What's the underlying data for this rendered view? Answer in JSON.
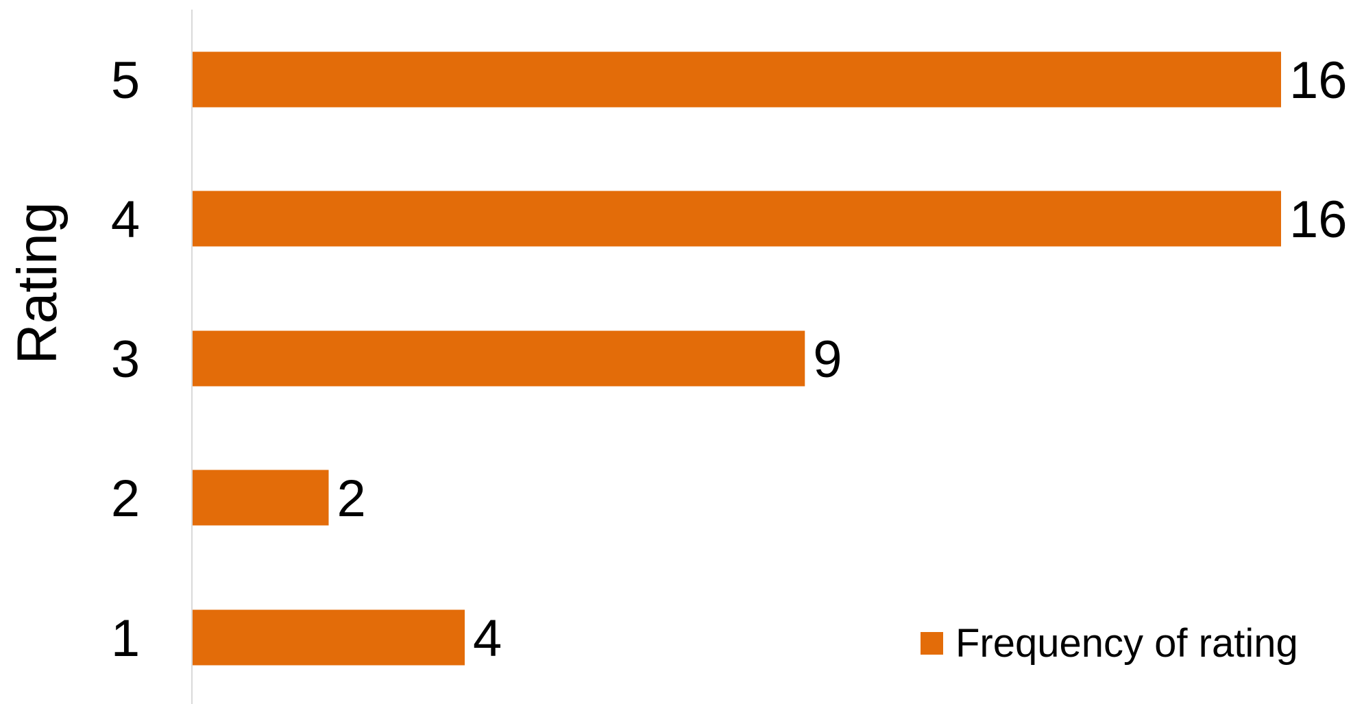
{
  "chart_data": {
    "type": "bar",
    "orientation": "horizontal",
    "title": "",
    "xlabel": "",
    "ylabel": "Rating",
    "categories": [
      "5",
      "4",
      "3",
      "2",
      "1"
    ],
    "series": [
      {
        "name": "Frequency of rating",
        "values": [
          16,
          16,
          9,
          2,
          4
        ],
        "color": "#E36C09"
      }
    ],
    "xlim": [
      0,
      16
    ],
    "grid": false,
    "legend_position": "bottom-right",
    "data_labels": true
  }
}
